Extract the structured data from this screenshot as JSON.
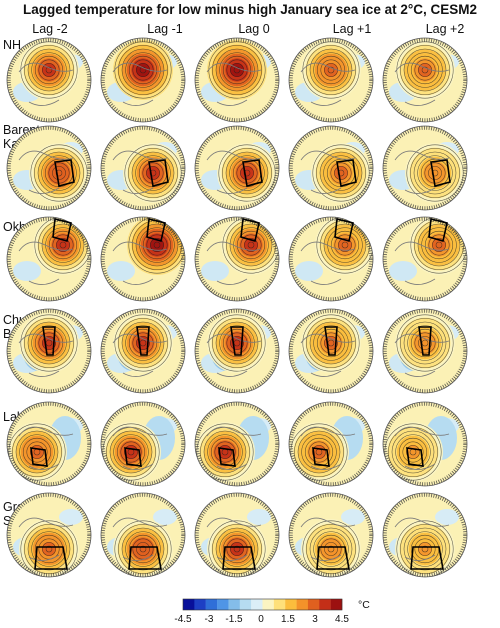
{
  "chart_data": {
    "type": "heatmap",
    "title": "Lagged temperature for low minus high January sea ice at 2°C, CESM2",
    "columns": [
      "Lag -2",
      "Lag -1",
      "Lag 0",
      "Lag +1",
      "Lag +2"
    ],
    "rows": [
      "NH",
      "Barents-Kara",
      "Okhotsk",
      "Chukchi/ Bering",
      "Labrador",
      "Greenland Sea"
    ],
    "colorbar": {
      "ticks": [
        "-4.5",
        "-3",
        "-1.5",
        "0",
        "1.5",
        "3",
        "4.5"
      ],
      "range": [
        -4.5,
        4.5
      ],
      "unit": "°C",
      "colors": [
        "#08109a",
        "#1d3fc4",
        "#2f6fd8",
        "#4f95e6",
        "#84bde9",
        "#b6dcf1",
        "#dbeef7",
        "#fbf4c2",
        "#fee07a",
        "#fbbd3d",
        "#f3922a",
        "#e0601f",
        "#c42f18",
        "#9c1110"
      ]
    },
    "panel_peak_anomaly_degC": [
      [
        3.8,
        4.2,
        4.2,
        3.0,
        2.6
      ],
      [
        3.2,
        3.6,
        3.8,
        2.6,
        2.4
      ],
      [
        3.6,
        4.0,
        3.6,
        2.8,
        2.8
      ],
      [
        3.4,
        3.8,
        3.6,
        2.6,
        2.4
      ],
      [
        3.0,
        3.4,
        3.6,
        2.6,
        2.2
      ],
      [
        3.0,
        3.2,
        3.4,
        2.4,
        2.2
      ]
    ]
  }
}
